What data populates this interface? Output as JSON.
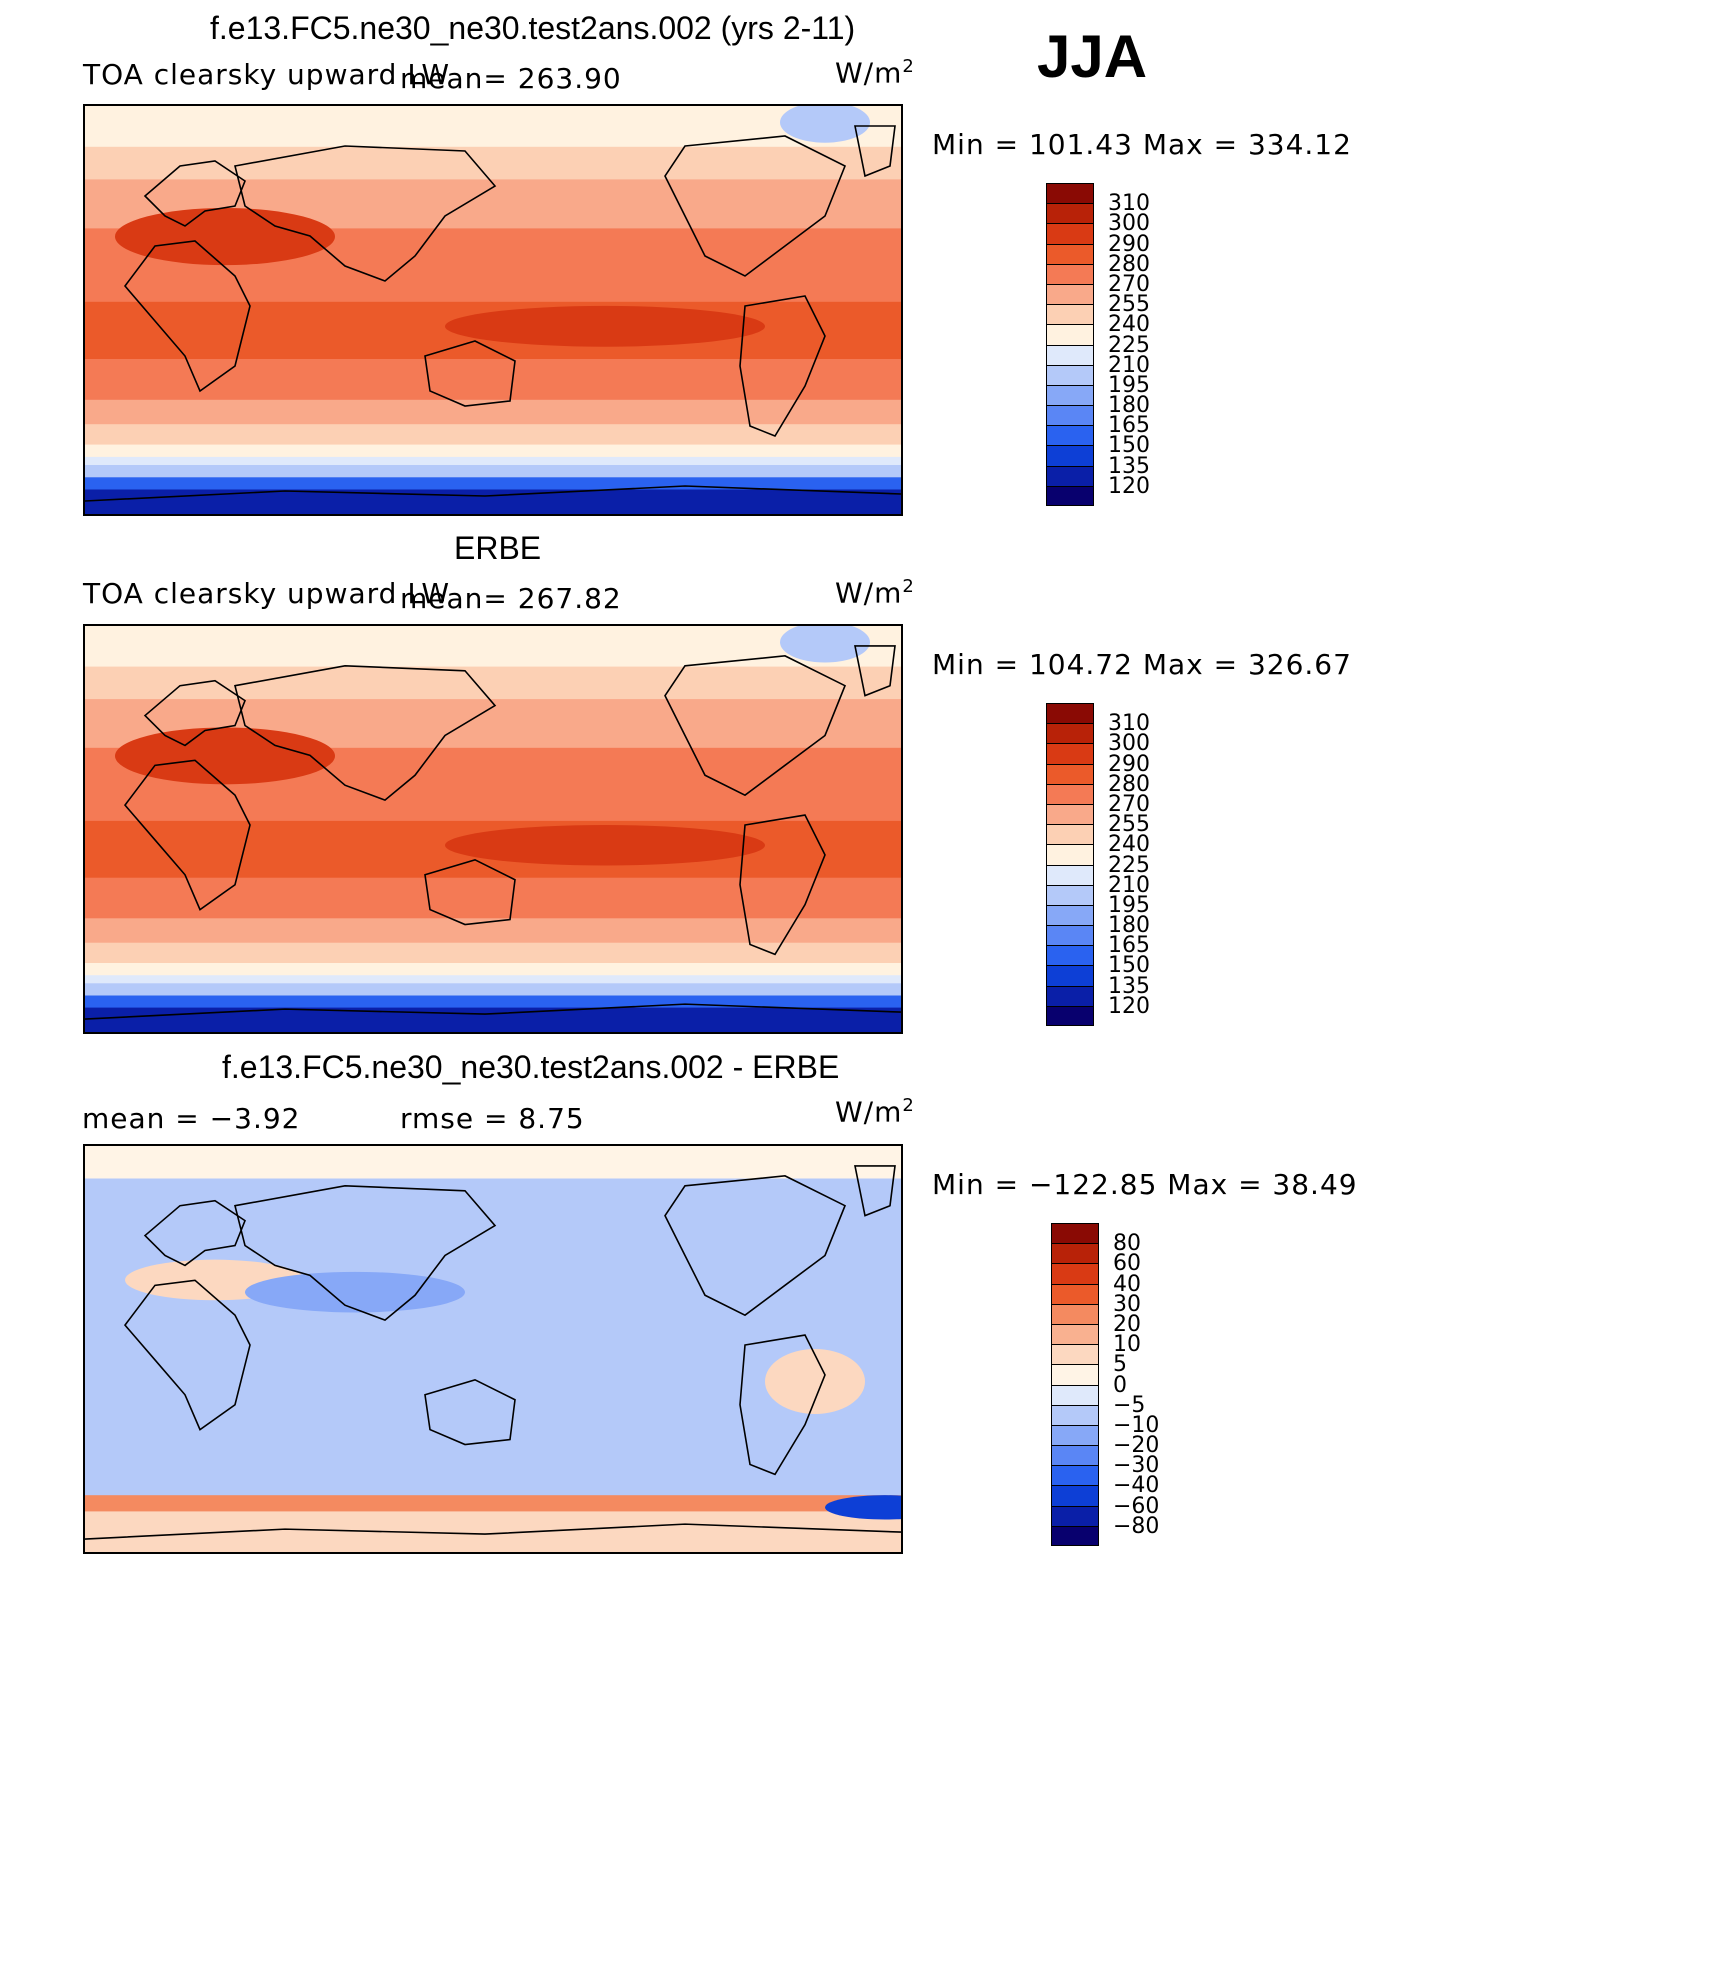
{
  "season": "JJA",
  "panels": [
    {
      "id": "model",
      "title": "f.e13.FC5.ne30_ne30.test2ans.002 (yrs 2-11)",
      "variable": "TOA clearsky upward LW",
      "stat1": "mean= 263.90",
      "stat2": "",
      "units_base": "W/m",
      "units_sup": "2",
      "minmax": "Min = 101.43 Max = 334.12",
      "colorbar_labels": [
        "310",
        "300",
        "290",
        "280",
        "270",
        "255",
        "240",
        "225",
        "210",
        "195",
        "180",
        "165",
        "150",
        "135",
        "120"
      ]
    },
    {
      "id": "obs",
      "title": "ERBE",
      "variable": "TOA clearsky upward LW",
      "stat1": "mean= 267.82",
      "stat2": "",
      "units_base": "W/m",
      "units_sup": "2",
      "minmax": "Min = 104.72 Max = 326.67",
      "colorbar_labels": [
        "310",
        "300",
        "290",
        "280",
        "270",
        "255",
        "240",
        "225",
        "210",
        "195",
        "180",
        "165",
        "150",
        "135",
        "120"
      ]
    },
    {
      "id": "diff",
      "title": "f.e13.FC5.ne30_ne30.test2ans.002 - ERBE",
      "variable": "",
      "stat1": "mean = −3.92",
      "stat2": "rmse = 8.75",
      "units_base": "W/m",
      "units_sup": "2",
      "minmax": "Min = −122.85 Max = 38.49",
      "colorbar_labels": [
        "80",
        "60",
        "40",
        "30",
        "20",
        "10",
        "5",
        "0",
        "−5",
        "−10",
        "−20",
        "−30",
        "−40",
        "−60",
        "−80"
      ]
    }
  ],
  "chart_data": [
    {
      "type": "heatmap",
      "title": "f.e13.FC5.ne30_ne30.test2ans.002 (yrs 2-11)",
      "subtitle": "TOA clearsky upward LW",
      "units": "W/m2",
      "mean": 263.9,
      "min": 101.43,
      "max": 334.12,
      "levels": [
        120,
        135,
        150,
        165,
        180,
        195,
        210,
        225,
        240,
        255,
        270,
        280,
        290,
        300,
        310
      ]
    },
    {
      "type": "heatmap",
      "title": "ERBE",
      "subtitle": "TOA clearsky upward LW",
      "units": "W/m2",
      "mean": 267.82,
      "min": 104.72,
      "max": 326.67,
      "levels": [
        120,
        135,
        150,
        165,
        180,
        195,
        210,
        225,
        240,
        255,
        270,
        280,
        290,
        300,
        310
      ]
    },
    {
      "type": "heatmap",
      "title": "f.e13.FC5.ne30_ne30.test2ans.002 - ERBE",
      "units": "W/m2",
      "mean": -3.92,
      "rmse": 8.75,
      "min": -122.85,
      "max": 38.49,
      "levels": [
        -80,
        -60,
        -40,
        -30,
        -20,
        -10,
        -5,
        0,
        5,
        10,
        20,
        30,
        40,
        60,
        80
      ]
    }
  ],
  "colors": {
    "abs_scale": [
      "#08006e",
      "#0a1fa8",
      "#0d3fd6",
      "#2a62f0",
      "#5a86f5",
      "#87a8f7",
      "#b4c9f9",
      "#dfe9fb",
      "#fff2e0",
      "#fcd0b4",
      "#f9a98a",
      "#f47a55",
      "#eb5a2a",
      "#d93a14",
      "#b82208",
      "#8a0a04"
    ],
    "diff_scale": [
      "#08006e",
      "#0a1fa8",
      "#0d3fd6",
      "#2a62f0",
      "#5a86f5",
      "#87a8f7",
      "#b4c9f9",
      "#dfe9fb",
      "#fff4e6",
      "#fcd8c0",
      "#f9b190",
      "#f48a60",
      "#eb5a2a",
      "#d93a14",
      "#b82208",
      "#8a0a04"
    ]
  }
}
